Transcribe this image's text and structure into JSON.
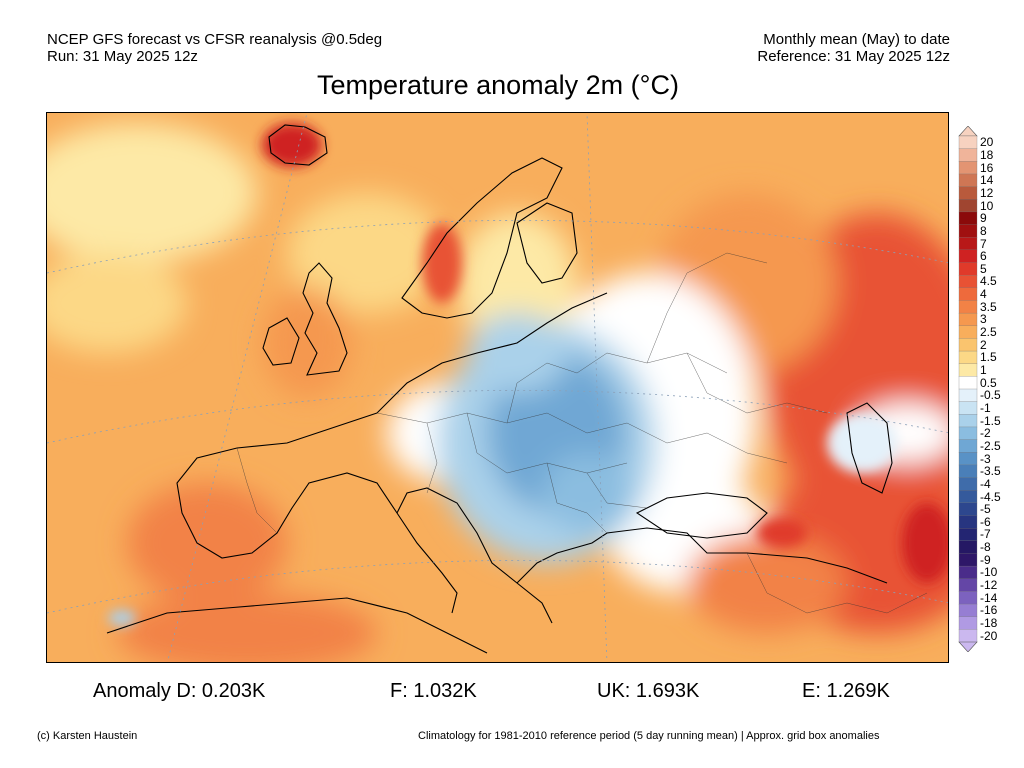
{
  "header": {
    "left_line1": "NCEP GFS forecast vs CFSR reanalysis @0.5deg",
    "left_line2": "Run: 31 May 2025 12z",
    "right_line1": "Monthly mean (May) to date",
    "right_line2": "Reference: 31 May 2025 12z"
  },
  "title": "Temperature anomaly 2m (°C)",
  "map": {
    "region": "Europe",
    "icons": [
      "map-region-europe"
    ]
  },
  "legend": {
    "labels": [
      "20",
      "18",
      "16",
      "14",
      "12",
      "10",
      "9",
      "8",
      "7",
      "6",
      "5",
      "4.5",
      "4",
      "3.5",
      "3",
      "2.5",
      "2",
      "1.5",
      "1",
      "0.5",
      "-0.5",
      "-1",
      "-1.5",
      "-2",
      "-2.5",
      "-3",
      "-3.5",
      "-4",
      "-4.5",
      "-5",
      "-6",
      "-7",
      "-8",
      "-9",
      "-10",
      "-12",
      "-14",
      "-16",
      "-18",
      "-20"
    ],
    "colors": [
      "#f7d2c0",
      "#f0b49a",
      "#e39472",
      "#cf7654",
      "#b95a3c",
      "#a04530",
      "#8b0a0a",
      "#a01010",
      "#b81818",
      "#cf2222",
      "#e03a2a",
      "#e85234",
      "#ee6a3c",
      "#f28246",
      "#f5984f",
      "#f8ae5c",
      "#fac46e",
      "#fcd886",
      "#fde9a6",
      "#ffffff",
      "#e4f1fa",
      "#c9e3f3",
      "#aad1ea",
      "#8bbde0",
      "#6fa7d4",
      "#5992c6",
      "#4a7fb8",
      "#3f6caa",
      "#355a9c",
      "#2d478e",
      "#273580",
      "#232572",
      "#251864",
      "#2e1768",
      "#4a2c8a",
      "#6446a6",
      "#7c62bf",
      "#967ed3",
      "#b09ae3",
      "#cbb8ef"
    ]
  },
  "anomalies": {
    "d": "Anomaly D: 0.203K",
    "f": "F: 1.032K",
    "uk": "UK: 1.693K",
    "e": "E: 1.269K"
  },
  "footer": {
    "credit": "(c) Karsten Haustein",
    "note": "Climatology for 1981-2010 reference period (5 day running mean) | Approx. grid box anomalies"
  }
}
